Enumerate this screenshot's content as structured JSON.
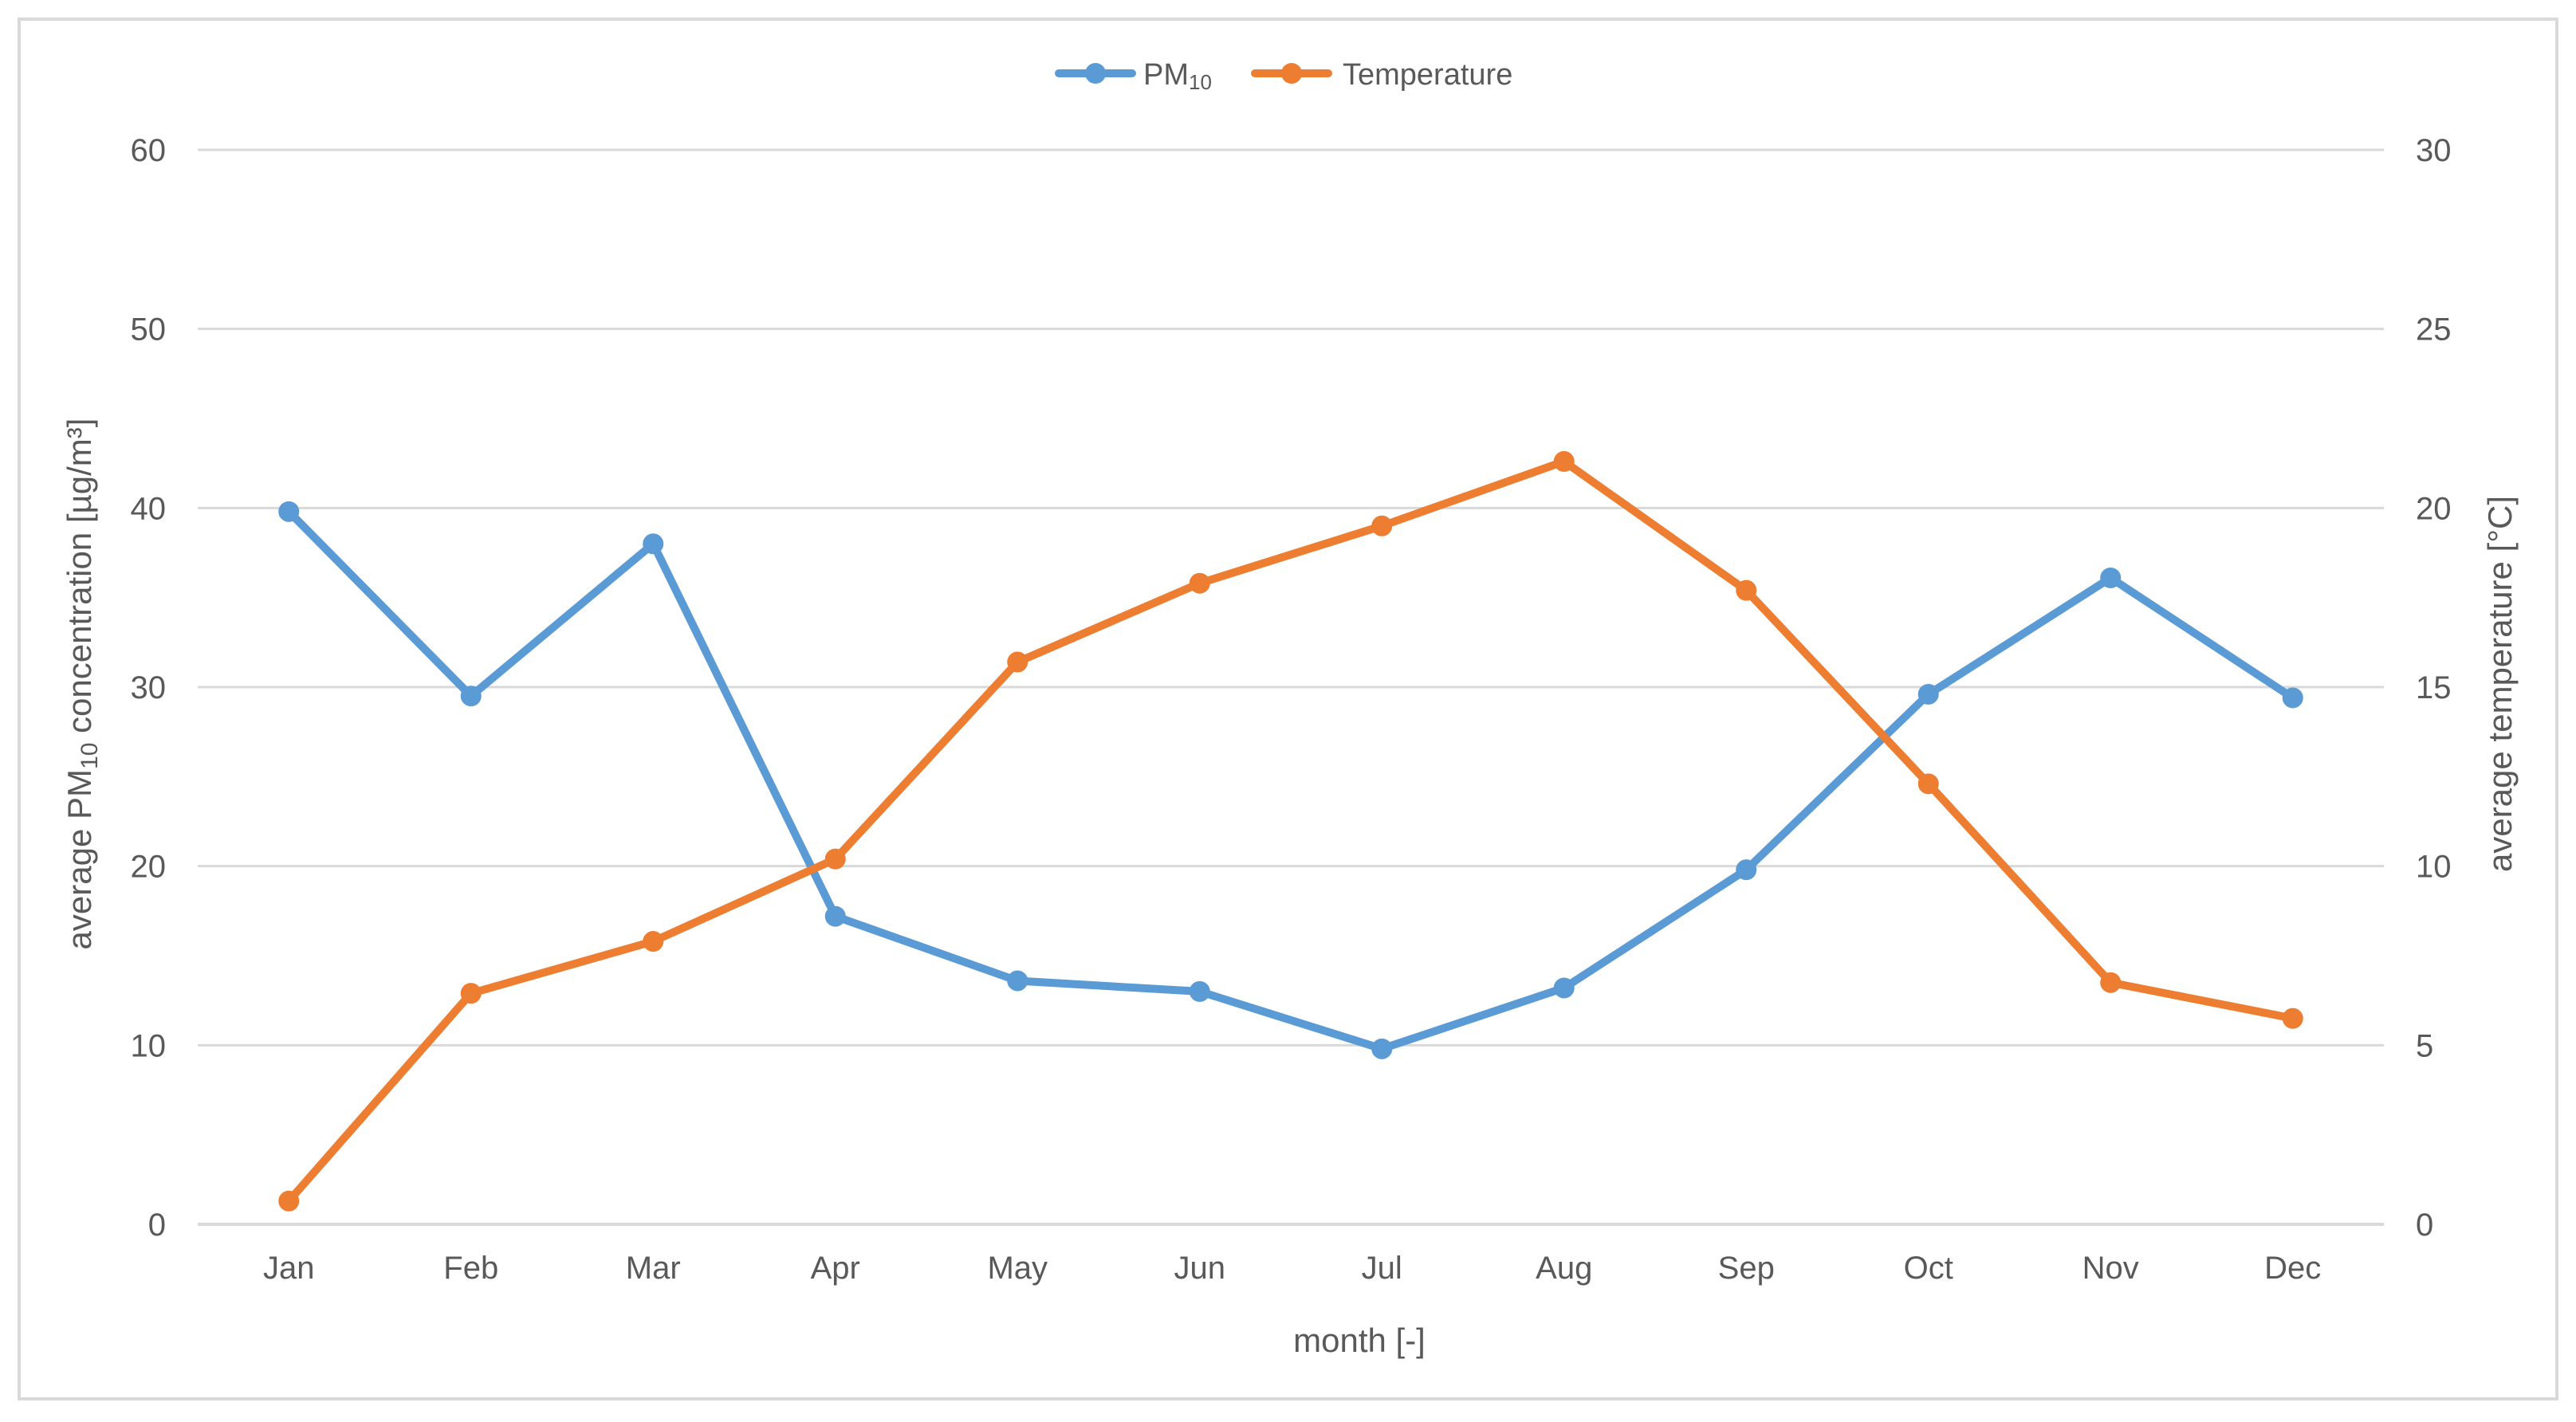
{
  "chart_data": {
    "type": "line",
    "title": "",
    "xlabel": "month [-]",
    "ylabel_left": {
      "prefix": "average PM",
      "subscript": "10",
      "suffix": " concentration [µg/m³]"
    },
    "ylabel_right": "average temperature [°C]",
    "categories": [
      "Jan",
      "Feb",
      "Mar",
      "Apr",
      "May",
      "Jun",
      "Jul",
      "Aug",
      "Sep",
      "Oct",
      "Nov",
      "Dec"
    ],
    "y_left": {
      "min": 0,
      "max": 60,
      "step": 10,
      "ticks": [
        "0",
        "10",
        "20",
        "30",
        "40",
        "50",
        "60"
      ]
    },
    "y_right": {
      "min": 0,
      "max": 30,
      "step": 5,
      "ticks": [
        "0",
        "5",
        "10",
        "15",
        "20",
        "25",
        "30"
      ]
    },
    "grid": true,
    "legend_position": "top-center",
    "series": [
      {
        "name": "PM₁₀",
        "name_base": "PM",
        "name_subscript": "10",
        "axis": "left",
        "color": "#5B9BD5",
        "values": [
          39.8,
          29.5,
          38.0,
          17.2,
          13.6,
          13.0,
          9.8,
          13.2,
          19.8,
          29.6,
          36.1,
          29.4
        ]
      },
      {
        "name": "Temperature",
        "axis": "right",
        "color": "#ED7D31",
        "values": [
          0.65,
          6.45,
          7.9,
          10.2,
          15.7,
          17.9,
          19.5,
          21.3,
          17.7,
          12.3,
          6.75,
          5.75
        ]
      }
    ],
    "colors": {
      "grid": "#D9D9D9",
      "axis_text": "#595959",
      "frame": "#D9D9D9"
    }
  }
}
